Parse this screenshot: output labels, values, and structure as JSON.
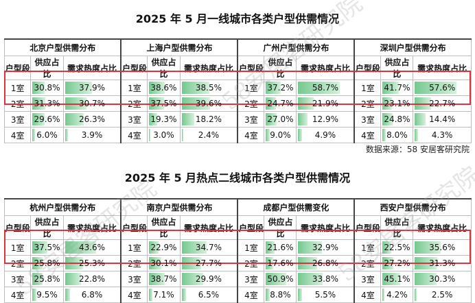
{
  "sections": [
    {
      "title": "2025 年 5 月一线城市各类户型供需情况",
      "cities": [
        {
          "header": "北京户型供需分布",
          "col_type": "户型段",
          "col_supply": "供应占比",
          "col_demand": "需求热度占比",
          "rows": [
            {
              "type": "1室",
              "supply": "30.8%",
              "demand": "37.9%",
              "s": 30.8,
              "d": 37.9
            },
            {
              "type": "2室",
              "supply": "31.3%",
              "demand": "30.7%",
              "s": 31.3,
              "d": 30.7
            },
            {
              "type": "3室",
              "supply": "29.6%",
              "demand": "26.3%",
              "s": 29.6,
              "d": 26.3
            },
            {
              "type": "4室",
              "supply": "6.0%",
              "demand": "3.9%",
              "s": 6.0,
              "d": 3.9
            }
          ]
        },
        {
          "header": "上海户型供需分布",
          "col_type": "户型段",
          "col_supply": "供应占比",
          "col_demand": "需求热度占比",
          "rows": [
            {
              "type": "1室",
              "supply": "38.6%",
              "demand": "38.5%",
              "s": 38.6,
              "d": 38.5
            },
            {
              "type": "2室",
              "supply": "37.5%",
              "demand": "39.6%",
              "s": 37.5,
              "d": 39.6
            },
            {
              "type": "3室",
              "supply": "19.3%",
              "demand": "18.2%",
              "s": 19.3,
              "d": 18.2
            },
            {
              "type": "4室",
              "supply": "3.0%",
              "demand": "2.4%",
              "s": 3.0,
              "d": 2.4
            }
          ]
        },
        {
          "header": "广州户型供需分布",
          "col_type": "户型段",
          "col_supply": "供应占比",
          "col_demand": "需求热度占比",
          "rows": [
            {
              "type": "1室",
              "supply": "37.2%",
              "demand": "58.7%",
              "s": 37.2,
              "d": 58.7
            },
            {
              "type": "2室",
              "supply": "24.7%",
              "demand": "21.9%",
              "s": 24.7,
              "d": 21.9
            },
            {
              "type": "3室",
              "supply": "27.0%",
              "demand": "12.9%",
              "s": 27.0,
              "d": 12.9
            },
            {
              "type": "4室",
              "supply": "9.0%",
              "demand": "4.9%",
              "s": 9.0,
              "d": 4.9
            }
          ]
        },
        {
          "header": "深圳户型供需分布",
          "col_type": "户型段",
          "col_supply": "供应占比",
          "col_demand": "需求热度占比",
          "rows": [
            {
              "type": "1室",
              "supply": "41.7%",
              "demand": "57.6%",
              "s": 41.7,
              "d": 57.6
            },
            {
              "type": "2室",
              "supply": "23.1%",
              "demand": "22.7%",
              "s": 23.1,
              "d": 22.7
            },
            {
              "type": "3室",
              "supply": "24.8%",
              "demand": "14.4%",
              "s": 24.8,
              "d": 14.4
            },
            {
              "type": "4室",
              "supply": "8.0%",
              "demand": "4.3%",
              "s": 8.0,
              "d": 4.3
            }
          ]
        }
      ],
      "source": "数据来源：58 安居客研究院"
    },
    {
      "title": "2025 年 5 月热点二线城市各类户型供需情况",
      "cities": [
        {
          "header": "杭州户型供需分布",
          "col_type": "户型段",
          "col_supply": "供应占比",
          "col_demand": "需求热度占比",
          "rows": [
            {
              "type": "1室",
              "supply": "37.5%",
              "demand": "43.6%",
              "s": 37.5,
              "d": 43.6
            },
            {
              "type": "2室",
              "supply": "25.8%",
              "demand": "25.3%",
              "s": 25.8,
              "d": 25.3
            },
            {
              "type": "3室",
              "supply": "25.8%",
              "demand": "22.8%",
              "s": 25.8,
              "d": 22.8
            },
            {
              "type": "4室",
              "supply": "9.5%",
              "demand": "6.8%",
              "s": 9.5,
              "d": 6.8
            }
          ]
        },
        {
          "header": "南京户型供需分布",
          "col_type": "户型段",
          "col_supply": "供应占比",
          "col_demand": "需求热度占比",
          "rows": [
            {
              "type": "1室",
              "supply": "22.9%",
              "demand": "34.7%",
              "s": 22.9,
              "d": 34.7
            },
            {
              "type": "2室",
              "supply": "30.1%",
              "demand": "27.7%",
              "s": 30.1,
              "d": 27.7
            },
            {
              "type": "3室",
              "supply": "38.7%",
              "demand": "29.9%",
              "s": 38.7,
              "d": 29.9
            },
            {
              "type": "4室",
              "supply": "7.1%",
              "demand": "6.5%",
              "s": 7.1,
              "d": 6.5
            }
          ]
        },
        {
          "header": "成都户型供需变化",
          "col_type": "户型段",
          "col_supply": "供应占比",
          "col_demand": "需求热度占比",
          "rows": [
            {
              "type": "1室",
              "supply": "21.6%",
              "demand": "32.9%",
              "s": 21.6,
              "d": 32.9
            },
            {
              "type": "2室",
              "supply": "17.6%",
              "demand": "26.8%",
              "s": 17.6,
              "d": 26.8
            },
            {
              "type": "3室",
              "supply": "50.9%",
              "demand": "33.8%",
              "s": 50.9,
              "d": 33.8
            },
            {
              "type": "4室",
              "supply": "8.8%",
              "demand": "5.5%",
              "s": 8.8,
              "d": 5.5
            }
          ]
        },
        {
          "header": "西安户型供需分布",
          "col_type": "户型段",
          "col_supply": "供应占比",
          "col_demand": "需求热度占比",
          "rows": [
            {
              "type": "1室",
              "supply": "22.5%",
              "demand": "35.6%",
              "s": 22.5,
              "d": 35.6
            },
            {
              "type": "2室",
              "supply": "27.2%",
              "demand": "31.3%",
              "s": 27.2,
              "d": 31.3
            },
            {
              "type": "3室",
              "supply": "45.1%",
              "demand": "30.3%",
              "s": 45.1,
              "d": 30.3
            },
            {
              "type": "4室",
              "supply": "4.2%",
              "demand": "2.5%",
              "s": 4.2,
              "d": 2.5
            }
          ]
        }
      ]
    }
  ],
  "watermark": "58安居客研究院",
  "colors": {
    "bar": "#74c98f",
    "highlight": "#e0303b",
    "grid": "#bdbdbd"
  }
}
